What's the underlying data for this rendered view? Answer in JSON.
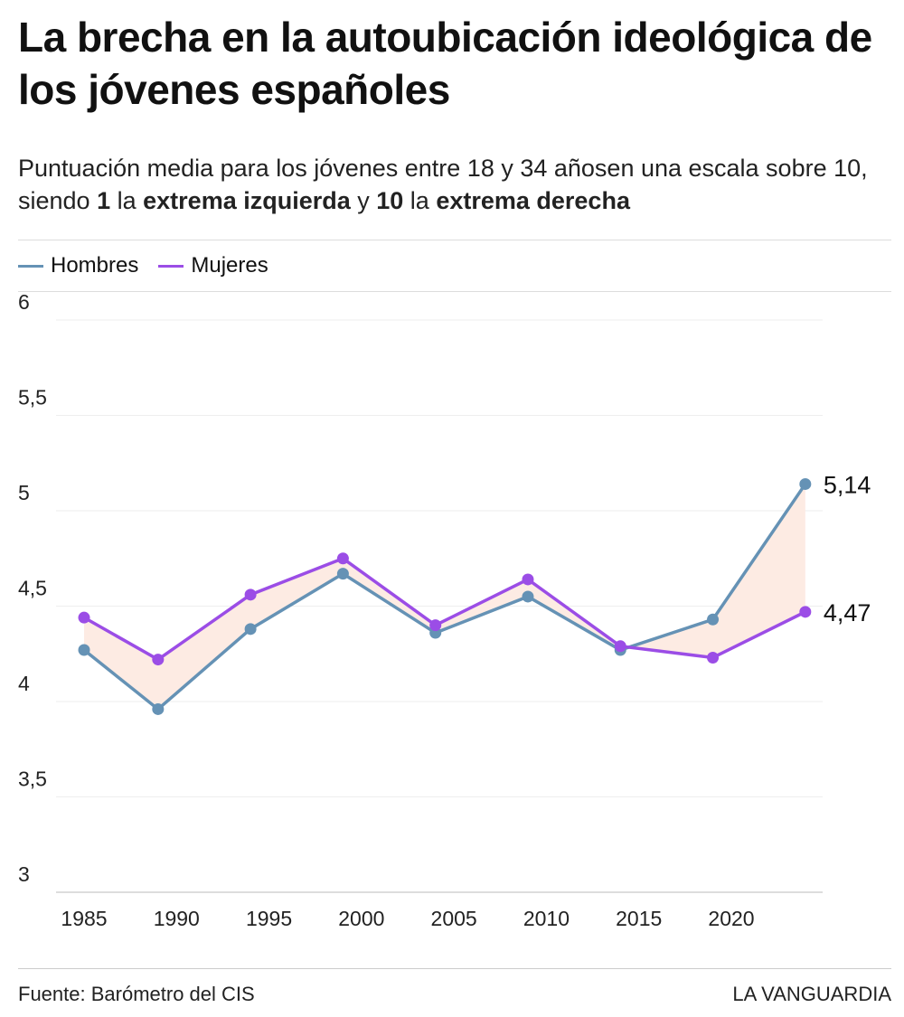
{
  "title": "La brecha en la autoubicación ideológica de los jóvenes españoles",
  "subtitle": {
    "p1": "Puntuación media para los jóvenes entre 18 y 34 añosen una escala sobre 10, siendo ",
    "b1": "1",
    "p2": " la ",
    "b2": "extrema izquierda",
    "p3": " y ",
    "b3": "10",
    "p4": " la ",
    "b4": "extrema derecha"
  },
  "footer": {
    "source": "Fuente: Barómetro del CIS",
    "brand": "LA VANGUARDIA"
  },
  "colors": {
    "hombres": "#6592b5",
    "mujeres": "#9b4de6",
    "gap_fill": "#fdebe3"
  },
  "chart_data": {
    "type": "line",
    "x": [
      1985,
      1989,
      1994,
      1999,
      2004,
      2009,
      2014,
      2019,
      2024
    ],
    "series": [
      {
        "name": "Hombres",
        "values": [
          4.27,
          3.96,
          4.38,
          4.67,
          4.36,
          4.55,
          4.27,
          4.43,
          5.14
        ]
      },
      {
        "name": "Mujeres",
        "values": [
          4.44,
          4.22,
          4.56,
          4.75,
          4.4,
          4.64,
          4.29,
          4.23,
          4.47
        ]
      }
    ],
    "end_labels": [
      "5,14",
      "4,47"
    ],
    "ylim": [
      3,
      6
    ],
    "yticks": [
      "3",
      "3,5",
      "4",
      "4,5",
      "5",
      "5,5",
      "6"
    ],
    "xticks": [
      "1985",
      "1990",
      "1995",
      "2000",
      "2005",
      "2010",
      "2015",
      "2020"
    ],
    "grid": true,
    "legend": "top-left"
  }
}
